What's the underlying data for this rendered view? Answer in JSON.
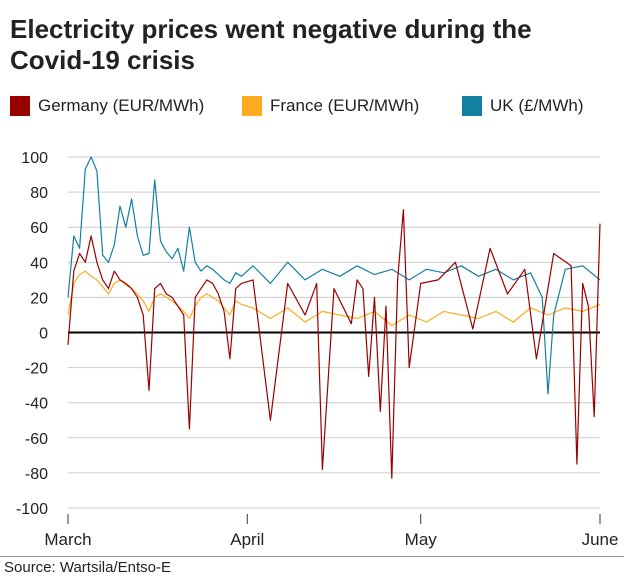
{
  "title": "Electricity prices went negative during the Covid-19 crisis",
  "source": "Source: Wartsila/Entso-E",
  "chart_data": {
    "type": "line",
    "title": "Electricity prices went negative during the Covid-19 crisis",
    "ylim": [
      -100,
      100
    ],
    "yticks": [
      100,
      80,
      60,
      40,
      20,
      0,
      -20,
      -40,
      -60,
      -80,
      -100
    ],
    "xlim": [
      "2020-03-01",
      "2020-06-01"
    ],
    "xticks": [
      {
        "label": "March",
        "date": "2020-03-01"
      },
      {
        "label": "April",
        "date": "2020-04-01"
      },
      {
        "label": "May",
        "date": "2020-05-01"
      },
      {
        "label": "June",
        "date": "2020-06-01"
      }
    ],
    "grid": true,
    "legend_position": "top",
    "series": [
      {
        "name": "France (EUR/MWh)",
        "color": "#fcac1e",
        "points": [
          [
            "2020-03-01",
            10
          ],
          [
            "2020-03-02",
            28
          ],
          [
            "2020-03-03",
            33
          ],
          [
            "2020-03-04",
            35
          ],
          [
            "2020-03-05",
            32
          ],
          [
            "2020-03-06",
            30
          ],
          [
            "2020-03-07",
            26
          ],
          [
            "2020-03-08",
            22
          ],
          [
            "2020-03-09",
            28
          ],
          [
            "2020-03-10",
            30
          ],
          [
            "2020-03-11",
            27
          ],
          [
            "2020-03-12",
            25
          ],
          [
            "2020-03-13",
            22
          ],
          [
            "2020-03-14",
            18
          ],
          [
            "2020-03-15",
            12
          ],
          [
            "2020-03-16",
            20
          ],
          [
            "2020-03-17",
            22
          ],
          [
            "2020-03-18",
            20
          ],
          [
            "2020-03-19",
            18
          ],
          [
            "2020-03-20",
            15
          ],
          [
            "2020-03-21",
            12
          ],
          [
            "2020-03-22",
            8
          ],
          [
            "2020-03-23",
            15
          ],
          [
            "2020-03-24",
            20
          ],
          [
            "2020-03-25",
            22
          ],
          [
            "2020-03-26",
            20
          ],
          [
            "2020-03-27",
            18
          ],
          [
            "2020-03-28",
            14
          ],
          [
            "2020-03-29",
            10
          ],
          [
            "2020-03-30",
            18
          ],
          [
            "2020-03-31",
            16
          ],
          [
            "2020-04-02",
            14
          ],
          [
            "2020-04-05",
            8
          ],
          [
            "2020-04-08",
            14
          ],
          [
            "2020-04-11",
            6
          ],
          [
            "2020-04-14",
            12
          ],
          [
            "2020-04-17",
            10
          ],
          [
            "2020-04-20",
            8
          ],
          [
            "2020-04-23",
            12
          ],
          [
            "2020-04-26",
            4
          ],
          [
            "2020-04-29",
            10
          ],
          [
            "2020-05-02",
            6
          ],
          [
            "2020-05-05",
            12
          ],
          [
            "2020-05-08",
            10
          ],
          [
            "2020-05-11",
            8
          ],
          [
            "2020-05-14",
            12
          ],
          [
            "2020-05-17",
            6
          ],
          [
            "2020-05-20",
            14
          ],
          [
            "2020-05-23",
            10
          ],
          [
            "2020-05-26",
            14
          ],
          [
            "2020-05-29",
            12
          ],
          [
            "2020-06-01",
            16
          ]
        ]
      },
      {
        "name": "UK (£/MWh)",
        "color": "#1380a1",
        "points": [
          [
            "2020-03-01",
            20
          ],
          [
            "2020-03-02",
            55
          ],
          [
            "2020-03-03",
            48
          ],
          [
            "2020-03-04",
            93
          ],
          [
            "2020-03-05",
            100
          ],
          [
            "2020-03-06",
            92
          ],
          [
            "2020-03-07",
            44
          ],
          [
            "2020-03-08",
            40
          ],
          [
            "2020-03-09",
            50
          ],
          [
            "2020-03-10",
            72
          ],
          [
            "2020-03-11",
            60
          ],
          [
            "2020-03-12",
            76
          ],
          [
            "2020-03-13",
            55
          ],
          [
            "2020-03-14",
            44
          ],
          [
            "2020-03-15",
            45
          ],
          [
            "2020-03-16",
            87
          ],
          [
            "2020-03-17",
            52
          ],
          [
            "2020-03-18",
            46
          ],
          [
            "2020-03-19",
            42
          ],
          [
            "2020-03-20",
            48
          ],
          [
            "2020-03-21",
            35
          ],
          [
            "2020-03-22",
            60
          ],
          [
            "2020-03-23",
            40
          ],
          [
            "2020-03-24",
            35
          ],
          [
            "2020-03-25",
            38
          ],
          [
            "2020-03-26",
            36
          ],
          [
            "2020-03-27",
            33
          ],
          [
            "2020-03-28",
            30
          ],
          [
            "2020-03-29",
            28
          ],
          [
            "2020-03-30",
            34
          ],
          [
            "2020-03-31",
            32
          ],
          [
            "2020-04-02",
            38
          ],
          [
            "2020-04-05",
            28
          ],
          [
            "2020-04-08",
            40
          ],
          [
            "2020-04-11",
            30
          ],
          [
            "2020-04-14",
            36
          ],
          [
            "2020-04-17",
            32
          ],
          [
            "2020-04-20",
            38
          ],
          [
            "2020-04-23",
            33
          ],
          [
            "2020-04-26",
            36
          ],
          [
            "2020-04-29",
            30
          ],
          [
            "2020-05-02",
            36
          ],
          [
            "2020-05-05",
            34
          ],
          [
            "2020-05-08",
            38
          ],
          [
            "2020-05-11",
            32
          ],
          [
            "2020-05-14",
            36
          ],
          [
            "2020-05-17",
            30
          ],
          [
            "2020-05-20",
            34
          ],
          [
            "2020-05-22",
            20
          ],
          [
            "2020-05-23",
            -35
          ],
          [
            "2020-05-24",
            10
          ],
          [
            "2020-05-26",
            36
          ],
          [
            "2020-05-29",
            38
          ],
          [
            "2020-06-01",
            30
          ]
        ]
      },
      {
        "name": "Germany (EUR/MWh)",
        "color": "#990000",
        "points": [
          [
            "2020-03-01",
            -7
          ],
          [
            "2020-03-02",
            35
          ],
          [
            "2020-03-03",
            45
          ],
          [
            "2020-03-04",
            40
          ],
          [
            "2020-03-05",
            55
          ],
          [
            "2020-03-06",
            40
          ],
          [
            "2020-03-07",
            30
          ],
          [
            "2020-03-08",
            25
          ],
          [
            "2020-03-09",
            35
          ],
          [
            "2020-03-10",
            30
          ],
          [
            "2020-03-11",
            28
          ],
          [
            "2020-03-12",
            25
          ],
          [
            "2020-03-13",
            20
          ],
          [
            "2020-03-14",
            10
          ],
          [
            "2020-03-15",
            -33
          ],
          [
            "2020-03-16",
            25
          ],
          [
            "2020-03-17",
            28
          ],
          [
            "2020-03-18",
            22
          ],
          [
            "2020-03-19",
            20
          ],
          [
            "2020-03-20",
            15
          ],
          [
            "2020-03-21",
            10
          ],
          [
            "2020-03-22",
            -55
          ],
          [
            "2020-03-23",
            20
          ],
          [
            "2020-03-24",
            25
          ],
          [
            "2020-03-25",
            30
          ],
          [
            "2020-03-26",
            28
          ],
          [
            "2020-03-27",
            22
          ],
          [
            "2020-03-28",
            12
          ],
          [
            "2020-03-29",
            -15
          ],
          [
            "2020-03-30",
            25
          ],
          [
            "2020-03-31",
            28
          ],
          [
            "2020-04-02",
            30
          ],
          [
            "2020-04-05",
            -50
          ],
          [
            "2020-04-08",
            28
          ],
          [
            "2020-04-11",
            10
          ],
          [
            "2020-04-13",
            28
          ],
          [
            "2020-04-14",
            -78
          ],
          [
            "2020-04-16",
            25
          ],
          [
            "2020-04-19",
            5
          ],
          [
            "2020-04-20",
            30
          ],
          [
            "2020-04-21",
            25
          ],
          [
            "2020-04-22",
            -25
          ],
          [
            "2020-04-23",
            20
          ],
          [
            "2020-04-24",
            -45
          ],
          [
            "2020-04-25",
            15
          ],
          [
            "2020-04-26",
            -83
          ],
          [
            "2020-04-27",
            30
          ],
          [
            "2020-04-28",
            70
          ],
          [
            "2020-04-29",
            -20
          ],
          [
            "2020-05-01",
            28
          ],
          [
            "2020-05-04",
            30
          ],
          [
            "2020-05-07",
            40
          ],
          [
            "2020-05-10",
            2
          ],
          [
            "2020-05-13",
            48
          ],
          [
            "2020-05-16",
            22
          ],
          [
            "2020-05-19",
            36
          ],
          [
            "2020-05-21",
            -15
          ],
          [
            "2020-05-24",
            45
          ],
          [
            "2020-05-27",
            38
          ],
          [
            "2020-05-28",
            -75
          ],
          [
            "2020-05-29",
            28
          ],
          [
            "2020-05-30",
            15
          ],
          [
            "2020-05-31",
            -48
          ],
          [
            "2020-06-01",
            62
          ]
        ]
      }
    ]
  }
}
